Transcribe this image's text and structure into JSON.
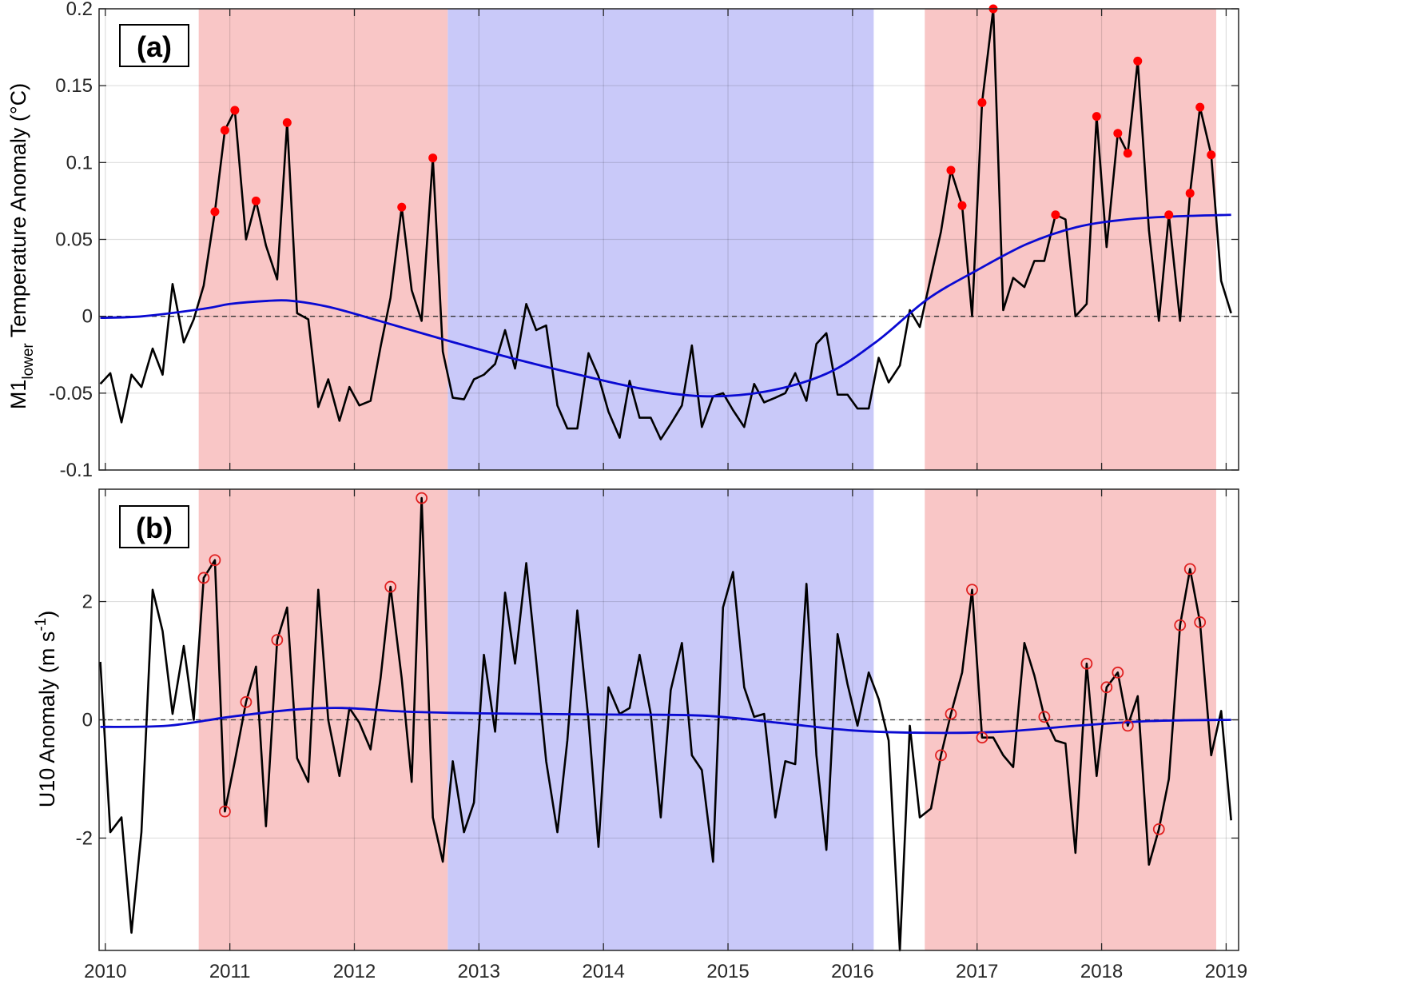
{
  "chart_data": [
    {
      "type": "line",
      "panel_label": "(a)",
      "ylabel_main": "M1",
      "ylabel_sub": "lower",
      "ylabel_rest": " Temperature Anomaly (°C)",
      "xlim": [
        2009.95,
        2019.1
      ],
      "ylim": [
        -0.1,
        0.2
      ],
      "yticks": [
        -0.1,
        -0.05,
        0,
        0.05,
        0.1,
        0.15,
        0.2
      ],
      "ytick_labels": [
        "-0.1",
        "-0.05",
        "0",
        "0.05",
        "0.1",
        "0.15",
        "0.2"
      ],
      "xticks": [
        2010,
        2011,
        2012,
        2013,
        2014,
        2015,
        2016,
        2017,
        2018,
        2019
      ],
      "xtick_labels": [
        "2010",
        "2011",
        "2012",
        "2013",
        "2014",
        "2015",
        "2016",
        "2017",
        "2018",
        "2019"
      ],
      "grid": true,
      "shaded_periods": [
        {
          "start": 2010.75,
          "end": 2012.75,
          "color": "#f9c6c6"
        },
        {
          "start": 2012.75,
          "end": 2016.17,
          "color": "#c9c9f9"
        },
        {
          "start": 2016.58,
          "end": 2018.92,
          "color": "#f9c6c6"
        }
      ],
      "series": [
        {
          "style": "line",
          "color": "#000000",
          "x": [
            2009.96,
            2010.04,
            2010.13,
            2010.21,
            2010.29,
            2010.38,
            2010.46,
            2010.54,
            2010.63,
            2010.71,
            2010.79,
            2010.88,
            2010.96,
            2011.04,
            2011.13,
            2011.21,
            2011.29,
            2011.38,
            2011.46,
            2011.54,
            2011.63,
            2011.71,
            2011.79,
            2011.88,
            2011.96,
            2012.04,
            2012.13,
            2012.21,
            2012.29,
            2012.38,
            2012.46,
            2012.54,
            2012.63,
            2012.71,
            2012.79,
            2012.88,
            2012.96,
            2013.04,
            2013.13,
            2013.21,
            2013.29,
            2013.38,
            2013.46,
            2013.54,
            2013.63,
            2013.71,
            2013.79,
            2013.88,
            2013.96,
            2014.04,
            2014.13,
            2014.21,
            2014.29,
            2014.38,
            2014.46,
            2014.54,
            2014.63,
            2014.71,
            2014.79,
            2014.88,
            2014.96,
            2015.04,
            2015.13,
            2015.21,
            2015.29,
            2015.38,
            2015.46,
            2015.54,
            2015.63,
            2015.71,
            2015.79,
            2015.88,
            2015.96,
            2016.04,
            2016.13,
            2016.21,
            2016.29,
            2016.38,
            2016.46,
            2016.54,
            2016.63,
            2016.71,
            2016.79,
            2016.88,
            2016.96,
            2017.04,
            2017.13,
            2017.21,
            2017.29,
            2017.38,
            2017.46,
            2017.54,
            2017.63,
            2017.71,
            2017.79,
            2017.88,
            2017.96,
            2018.04,
            2018.13,
            2018.21,
            2018.29,
            2018.38,
            2018.46,
            2018.54,
            2018.63,
            2018.71,
            2018.79,
            2018.88,
            2018.96,
            2019.04
          ],
          "y": [
            -0.044,
            -0.037,
            -0.069,
            -0.038,
            -0.046,
            -0.021,
            -0.038,
            0.021,
            -0.017,
            -0.002,
            0.02,
            0.068,
            0.121,
            0.134,
            0.05,
            0.075,
            0.046,
            0.024,
            0.126,
            0.002,
            -0.002,
            -0.059,
            -0.041,
            -0.068,
            -0.046,
            -0.058,
            -0.055,
            -0.02,
            0.012,
            0.071,
            0.017,
            -0.003,
            0.103,
            -0.023,
            -0.053,
            -0.054,
            -0.041,
            -0.038,
            -0.031,
            -0.009,
            -0.034,
            0.008,
            -0.009,
            -0.006,
            -0.058,
            -0.073,
            -0.073,
            -0.024,
            -0.039,
            -0.062,
            -0.079,
            -0.042,
            -0.066,
            -0.066,
            -0.08,
            -0.07,
            -0.058,
            -0.019,
            -0.072,
            -0.052,
            -0.05,
            -0.061,
            -0.072,
            -0.044,
            -0.056,
            -0.053,
            -0.05,
            -0.037,
            -0.055,
            -0.018,
            -0.011,
            -0.051,
            -0.051,
            -0.06,
            -0.06,
            -0.027,
            -0.043,
            -0.032,
            0.004,
            -0.007,
            0.026,
            0.055,
            0.095,
            0.072,
            0.0,
            0.139,
            0.2,
            0.004,
            0.025,
            0.019,
            0.036,
            0.036,
            0.066,
            0.063,
            0.0,
            0.008,
            0.13,
            0.045,
            0.119,
            0.106,
            0.166,
            0.056,
            -0.003,
            0.066,
            -0.003,
            0.08,
            0.136,
            0.105,
            0.023,
            0.002
          ]
        },
        {
          "style": "smooth",
          "color": "#0a0ad2",
          "x": [
            2009.96,
            2010.3,
            2010.8,
            2011.0,
            2011.3,
            2011.5,
            2011.8,
            2012.2,
            2012.8,
            2013.3,
            2013.8,
            2014.3,
            2014.8,
            2015.3,
            2015.8,
            2016.2,
            2016.6,
            2017.0,
            2017.4,
            2017.8,
            2018.2,
            2018.6,
            2019.04
          ],
          "y": [
            -0.001,
            0.0,
            0.005,
            0.008,
            0.01,
            0.01,
            0.006,
            -0.003,
            -0.017,
            -0.028,
            -0.038,
            -0.047,
            -0.052,
            -0.049,
            -0.037,
            -0.016,
            0.011,
            0.03,
            0.047,
            0.058,
            0.063,
            0.065,
            0.066
          ]
        },
        {
          "style": "filled-markers",
          "color": "#ff0000",
          "x": [
            2010.88,
            2010.96,
            2011.04,
            2011.21,
            2011.46,
            2012.38,
            2012.63,
            2016.79,
            2016.88,
            2017.04,
            2017.13,
            2017.63,
            2017.96,
            2018.13,
            2018.21,
            2018.29,
            2018.54,
            2018.71,
            2018.79,
            2018.88
          ],
          "y": [
            0.068,
            0.121,
            0.134,
            0.075,
            0.126,
            0.071,
            0.103,
            0.095,
            0.072,
            0.139,
            0.2,
            0.066,
            0.13,
            0.119,
            0.106,
            0.166,
            0.066,
            0.08,
            0.136,
            0.105
          ]
        }
      ]
    },
    {
      "type": "line",
      "panel_label": "(b)",
      "ylabel_main": "U10 Anomaly (m s",
      "ylabel_sup": "-1",
      "ylabel_rest": ")",
      "xlim": [
        2009.95,
        2019.1
      ],
      "ylim": [
        -3.9,
        3.9
      ],
      "yticks": [
        -2,
        0,
        2
      ],
      "ytick_labels": [
        "-2",
        "0",
        "2"
      ],
      "xticks": [
        2010,
        2011,
        2012,
        2013,
        2014,
        2015,
        2016,
        2017,
        2018,
        2019
      ],
      "xtick_labels": [
        "2010",
        "2011",
        "2012",
        "2013",
        "2014",
        "2015",
        "2016",
        "2017",
        "2018",
        "2019"
      ],
      "grid": true,
      "shaded_periods": [
        {
          "start": 2010.75,
          "end": 2012.75,
          "color": "#f9c6c6"
        },
        {
          "start": 2012.75,
          "end": 2016.17,
          "color": "#c9c9f9"
        },
        {
          "start": 2016.58,
          "end": 2018.92,
          "color": "#f9c6c6"
        }
      ],
      "series": [
        {
          "style": "line",
          "color": "#000000",
          "x": [
            2009.96,
            2010.04,
            2010.13,
            2010.21,
            2010.29,
            2010.38,
            2010.46,
            2010.54,
            2010.63,
            2010.71,
            2010.79,
            2010.88,
            2010.96,
            2011.04,
            2011.13,
            2011.21,
            2011.29,
            2011.38,
            2011.46,
            2011.54,
            2011.63,
            2011.71,
            2011.79,
            2011.88,
            2011.96,
            2012.04,
            2012.13,
            2012.21,
            2012.29,
            2012.38,
            2012.46,
            2012.54,
            2012.63,
            2012.71,
            2012.79,
            2012.88,
            2012.96,
            2013.04,
            2013.13,
            2013.21,
            2013.29,
            2013.38,
            2013.46,
            2013.54,
            2013.63,
            2013.71,
            2013.79,
            2013.88,
            2013.96,
            2014.04,
            2014.13,
            2014.21,
            2014.29,
            2014.38,
            2014.46,
            2014.54,
            2014.63,
            2014.71,
            2014.79,
            2014.88,
            2014.96,
            2015.04,
            2015.13,
            2015.21,
            2015.29,
            2015.38,
            2015.46,
            2015.54,
            2015.63,
            2015.71,
            2015.79,
            2015.88,
            2015.96,
            2016.04,
            2016.13,
            2016.21,
            2016.29,
            2016.38,
            2016.46,
            2016.54,
            2016.63,
            2016.71,
            2016.79,
            2016.88,
            2016.96,
            2017.04,
            2017.13,
            2017.21,
            2017.29,
            2017.38,
            2017.46,
            2017.54,
            2017.63,
            2017.71,
            2017.79,
            2017.88,
            2017.96,
            2018.04,
            2018.13,
            2018.21,
            2018.29,
            2018.38,
            2018.46,
            2018.54,
            2018.63,
            2018.71,
            2018.79,
            2018.88,
            2018.96,
            2019.04
          ],
          "y": [
            0.98,
            -1.9,
            -1.65,
            -3.6,
            -1.9,
            2.2,
            1.5,
            0.1,
            1.25,
            0.0,
            2.4,
            2.7,
            -1.55,
            -0.7,
            0.3,
            0.9,
            -1.8,
            1.35,
            1.9,
            -0.65,
            -1.05,
            2.2,
            0.0,
            -0.95,
            0.2,
            -0.05,
            -0.5,
            0.7,
            2.25,
            0.7,
            -1.05,
            3.75,
            -1.65,
            -2.4,
            -0.7,
            -1.9,
            -1.4,
            1.1,
            -0.2,
            2.15,
            0.95,
            2.65,
            1.0,
            -0.7,
            -1.9,
            -0.35,
            1.85,
            0.0,
            -2.15,
            0.55,
            0.1,
            0.2,
            1.1,
            0.1,
            -1.65,
            0.5,
            1.3,
            -0.6,
            -0.85,
            -2.4,
            1.9,
            2.5,
            0.55,
            0.05,
            0.1,
            -1.65,
            -0.7,
            -0.75,
            2.3,
            -0.6,
            -2.2,
            1.45,
            0.6,
            -0.1,
            0.8,
            0.35,
            -0.35,
            -3.9,
            -0.1,
            -1.65,
            -1.5,
            -0.6,
            0.1,
            0.8,
            2.2,
            -0.3,
            -0.3,
            -0.6,
            -0.8,
            1.3,
            0.75,
            0.05,
            -0.35,
            -0.4,
            -2.25,
            0.95,
            -0.95,
            0.55,
            0.8,
            -0.1,
            0.4,
            -2.45,
            -1.85,
            -1.0,
            1.6,
            2.55,
            1.65,
            -0.6,
            0.15,
            -1.7
          ]
        },
        {
          "style": "smooth",
          "color": "#0a0ad2",
          "x": [
            2009.96,
            2010.5,
            2011.0,
            2011.5,
            2011.9,
            2012.4,
            2013.0,
            2014.0,
            2014.8,
            2015.4,
            2016.0,
            2016.6,
            2017.2,
            2017.8,
            2018.4,
            2019.04
          ],
          "y": [
            -0.12,
            -0.1,
            0.05,
            0.17,
            0.2,
            0.14,
            0.11,
            0.09,
            0.07,
            -0.05,
            -0.18,
            -0.22,
            -0.2,
            -0.1,
            -0.02,
            0.0
          ]
        },
        {
          "style": "open-markers",
          "color": "#e02020",
          "x": [
            2010.79,
            2010.88,
            2010.96,
            2011.13,
            2011.38,
            2012.29,
            2012.54,
            2016.71,
            2016.79,
            2016.96,
            2017.04,
            2017.54,
            2017.88,
            2018.04,
            2018.13,
            2018.21,
            2018.46,
            2018.63,
            2018.71,
            2018.79
          ],
          "y": [
            2.4,
            2.7,
            -1.55,
            0.3,
            1.35,
            2.25,
            3.75,
            -0.6,
            0.1,
            2.2,
            -0.3,
            0.05,
            0.95,
            0.55,
            0.8,
            -0.1,
            -1.85,
            1.6,
            2.55,
            1.65
          ]
        }
      ]
    }
  ]
}
